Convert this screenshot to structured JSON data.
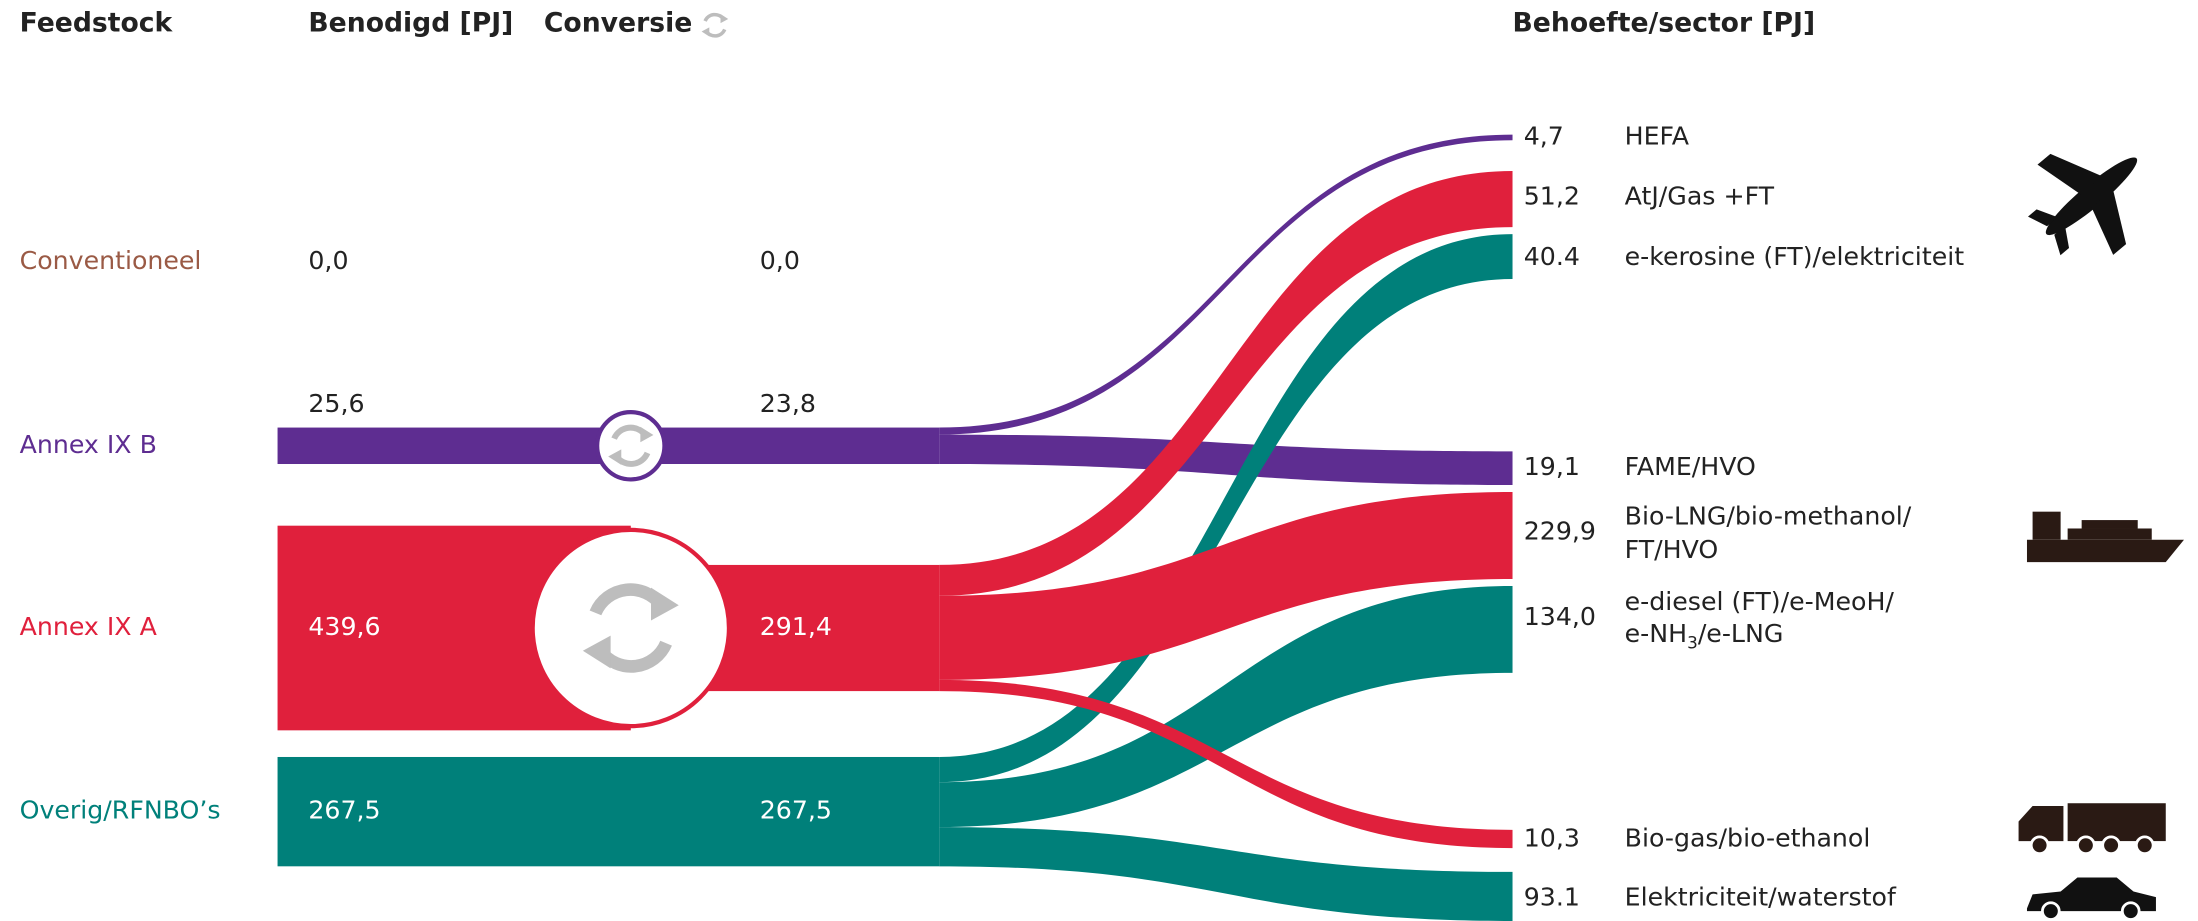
{
  "headers": {
    "feedstock": "Feedstock",
    "required": "Benodigd [PJ]",
    "conversion": "Conversie",
    "demand": "Behoefte/sector [PJ]"
  },
  "feedstocks": [
    {
      "label": "Conventioneel",
      "required": "0,0",
      "converted": "0,0"
    },
    {
      "label": "Annex IX B",
      "required": "25,6",
      "converted": "23,8"
    },
    {
      "label": "Annex IX A",
      "required": "439,6",
      "converted": "291,4"
    },
    {
      "label": "Overig/RFNBO’s",
      "required": "267,5",
      "converted": "267,5"
    }
  ],
  "sectors": [
    {
      "value": "4,7",
      "label": [
        "HEFA"
      ]
    },
    {
      "value": "51,2",
      "label": [
        "AtJ/Gas +FT"
      ]
    },
    {
      "value": "40.4",
      "label": [
        "e-kerosine (FT)/elektriciteit"
      ]
    },
    {
      "value": "19,1",
      "label": [
        "FAME/HVO"
      ]
    },
    {
      "value": "229,9",
      "label": [
        "Bio-LNG/bio-methanol/",
        "FT/HVO"
      ]
    },
    {
      "value": "134,0",
      "label": [
        "e-diesel (FT)/e-MeoH/"
      ],
      "label2": [
        "e-NH",
        "3",
        "/e-LNG"
      ]
    },
    {
      "value": "10,3",
      "label": [
        "Bio-gas/bio-ethanol"
      ]
    },
    {
      "value": "93.1",
      "label": [
        "Elektriciteit/waterstof"
      ]
    }
  ]
}
